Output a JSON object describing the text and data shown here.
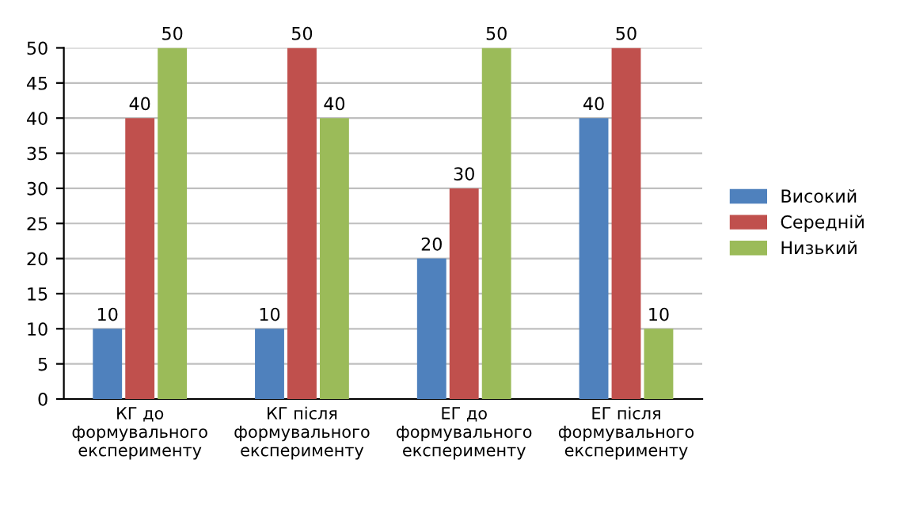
{
  "chart_data": {
    "type": "bar",
    "categories": [
      "КГ до\nформувального\nексперименту",
      "КГ після\nформувального\nексперименту",
      "ЕГ до\nформувального\nексперименту",
      "ЕГ після\nформувального\nексперименту"
    ],
    "series": [
      {
        "name": "Високий",
        "color": "#4f81bd",
        "values": [
          10,
          10,
          20,
          40
        ]
      },
      {
        "name": "Середній",
        "color": "#c0504d",
        "values": [
          40,
          50,
          30,
          50
        ]
      },
      {
        "name": "Низький",
        "color": "#9bbb59",
        "values": [
          50,
          40,
          50,
          10
        ]
      }
    ],
    "ylim": [
      0,
      50
    ],
    "yticks": [
      0,
      5,
      10,
      15,
      20,
      25,
      30,
      35,
      40,
      45,
      50
    ],
    "grid": "y",
    "legend": "right",
    "data_labels": true
  }
}
